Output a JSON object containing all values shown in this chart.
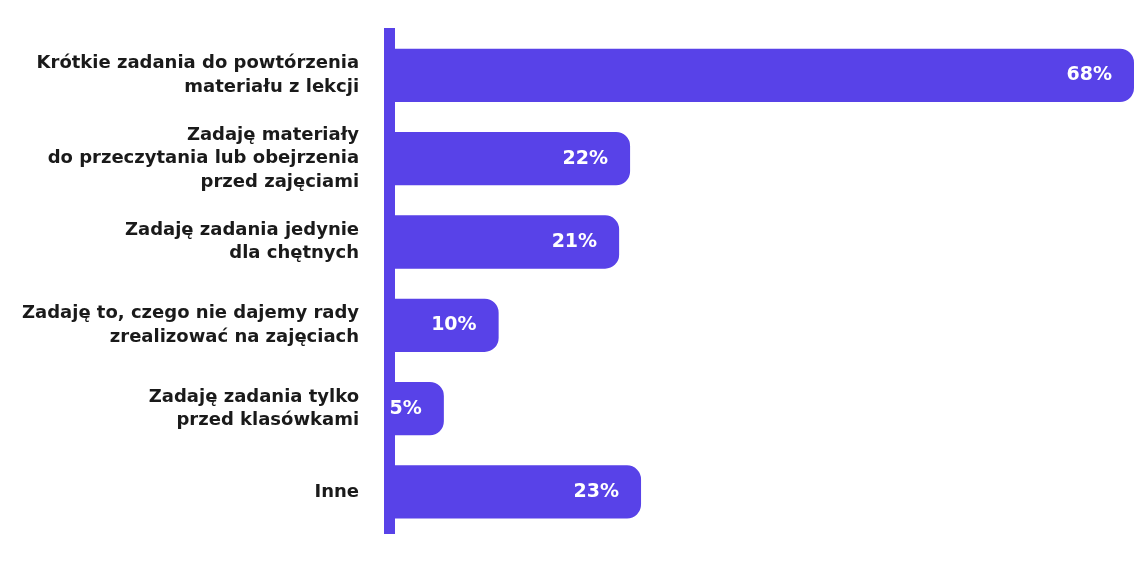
{
  "chart_data": {
    "type": "bar",
    "orientation": "horizontal",
    "categories": [
      "Krótkie zadania do powtórzenia\nmateriału z lekcji",
      "Zadaję materiały\ndo przeczytania lub obejrzenia\nprzed zajęciami",
      "Zadaję zadania jedynie\ndla chętnych",
      "Zadaję to, czego nie dajemy rady\nzrealizować na zajęciach",
      "Zadaję zadania tylko\nprzed klasówkami",
      "Inne"
    ],
    "values": [
      68,
      22,
      21,
      10,
      5,
      23
    ],
    "value_labels": [
      "68%",
      "22%",
      "21%",
      "10%",
      "5%",
      "23%"
    ],
    "color": "#5842e8"
  }
}
